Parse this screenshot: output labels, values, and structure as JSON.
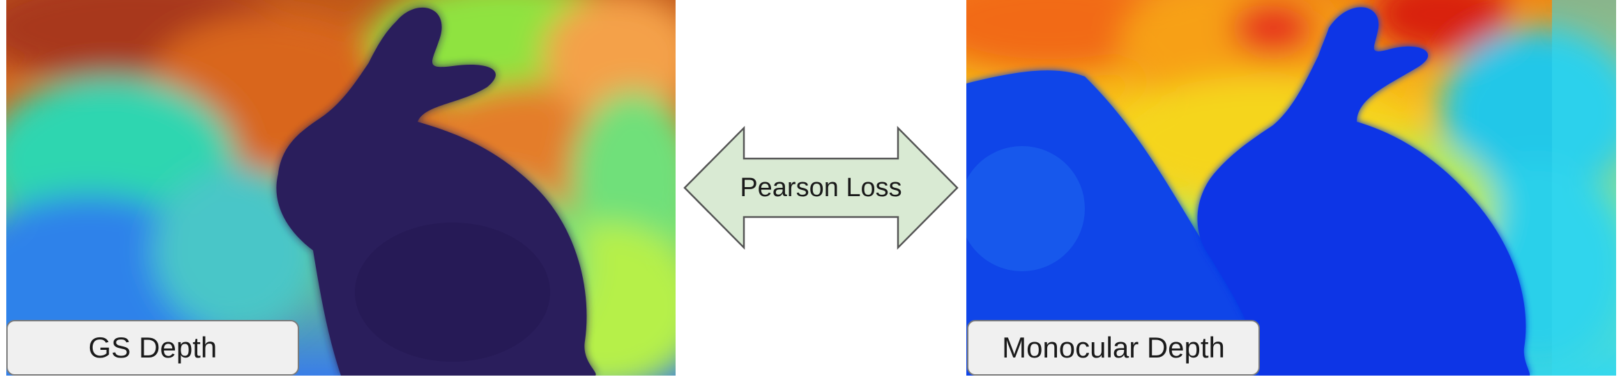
{
  "left_panel": {
    "label": "GS Depth"
  },
  "right_panel": {
    "label": "Monocular Depth"
  },
  "connector": {
    "label": "Pearson Loss",
    "fill_color": "#d9ead3",
    "stroke_color": "#555555"
  },
  "colors": {
    "label_box_bg": "#f0f0f0",
    "label_box_border": "#7a7a7a",
    "gs_bunny": "#2a1e5c",
    "mono_bunny": "#0d35e6"
  }
}
